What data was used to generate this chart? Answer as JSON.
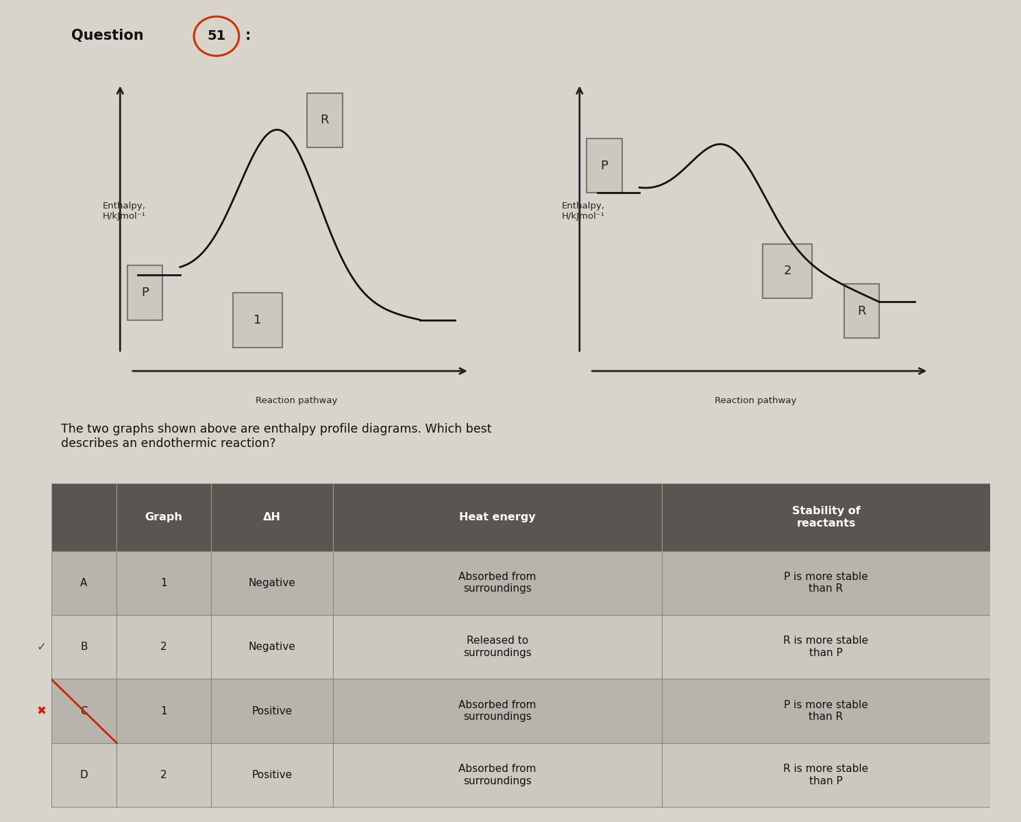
{
  "page_bg": "#d8d4cc",
  "graph_bg": "#ccc8c0",
  "ylabel": "Enthalpy,\nH/kJmol⁻¹",
  "xlabel": "Reaction pathway",
  "question_text": "The two graphs shown above are enthalpy profile diagrams. Which best\ndescribes an endothermic reaction?",
  "table_headers": [
    "",
    "Graph",
    "ΔH",
    "Heat energy",
    "Stability of\nreactants"
  ],
  "table_rows": [
    [
      "A",
      "1",
      "Negative",
      "Absorbed from\nsurroundings",
      "P is more stable\nthan R"
    ],
    [
      "B",
      "2",
      "Negative",
      "Released to\nsurroundings",
      "R is more stable\nthan P"
    ],
    [
      "C",
      "1",
      "Positive",
      "Absorbed from\nsurroundings",
      "P is more stable\nthan R"
    ],
    [
      "D",
      "2",
      "Positive",
      "Absorbed from\nsurroundings",
      "R is more stable\nthan P"
    ]
  ],
  "header_bg": "#5a5550",
  "header_fg": "#ffffff",
  "row_bg_even": "#ccc8c0",
  "row_bg_odd": "#b8b4ac",
  "cell_border": "#888880",
  "table_text_color": "#111111",
  "mark_color": "#cc2200",
  "title_color": "#111111",
  "circle_color": "#cc3300",
  "graph_line_color": "#111111",
  "box_edge_color": "#777777",
  "box_face_color": "#ccc8be",
  "arrow_color": "#222222"
}
